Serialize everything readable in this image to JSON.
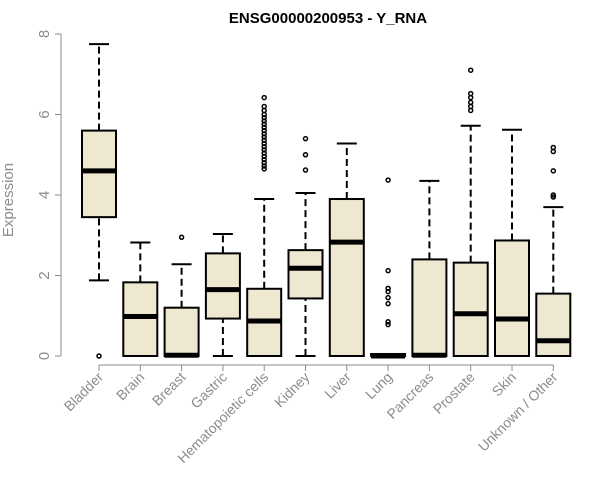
{
  "chart_data": {
    "type": "boxplot",
    "title": "ENSG00000200953 - Y_RNA",
    "xlabel": "",
    "ylabel": "Expression",
    "ylim": [
      0,
      8
    ],
    "yticks": [
      0,
      2,
      4,
      6,
      8
    ],
    "grid": false,
    "box_fill": "#efe8d0",
    "line_color": "#000000",
    "axis_color": "#8c8c8c",
    "categories": [
      "Bladder",
      "Brain",
      "Breast",
      "Gastric",
      "Hematopoietic cells",
      "Kidney",
      "Liver",
      "Lung",
      "Pancreas",
      "Prostate",
      "Skin",
      "Unknown / Other"
    ],
    "series": [
      {
        "name": "Bladder",
        "whisker_low": 1.88,
        "q1": 3.45,
        "median": 4.6,
        "q3": 5.6,
        "whisker_high": 7.75,
        "outliers": [
          0.0
        ]
      },
      {
        "name": "Brain",
        "whisker_low": 0.0,
        "q1": 0.0,
        "median": 0.98,
        "q3": 1.83,
        "whisker_high": 2.82,
        "outliers": []
      },
      {
        "name": "Breast",
        "whisker_low": 0.0,
        "q1": 0.0,
        "median": 0.02,
        "q3": 1.2,
        "whisker_high": 2.28,
        "outliers": [
          2.95
        ]
      },
      {
        "name": "Gastric",
        "whisker_low": 0.0,
        "q1": 0.93,
        "median": 1.65,
        "q3": 2.55,
        "whisker_high": 3.03,
        "outliers": []
      },
      {
        "name": "Hematopoietic cells",
        "whisker_low": 0.0,
        "q1": 0.0,
        "median": 0.87,
        "q3": 1.67,
        "whisker_high": 3.9,
        "outliers": [
          4.65,
          4.72,
          4.8,
          4.88,
          4.96,
          5.04,
          5.12,
          5.2,
          5.28,
          5.36,
          5.44,
          5.52,
          5.6,
          5.68,
          5.76,
          5.84,
          5.92,
          6.0,
          6.1,
          6.2,
          6.42
        ]
      },
      {
        "name": "Kidney",
        "whisker_low": 0.0,
        "q1": 1.43,
        "median": 2.18,
        "q3": 2.63,
        "whisker_high": 4.05,
        "outliers": [
          4.62,
          5.0,
          5.4
        ]
      },
      {
        "name": "Liver",
        "whisker_low": 0.0,
        "q1": 0.0,
        "median": 2.83,
        "q3": 3.9,
        "whisker_high": 5.28,
        "outliers": []
      },
      {
        "name": "Lung",
        "whisker_low": 0.0,
        "q1": 0.0,
        "median": 0.0,
        "q3": 0.05,
        "whisker_high": 0.05,
        "outliers": [
          0.78,
          0.85,
          1.3,
          1.45,
          1.6,
          1.68,
          2.12,
          4.37
        ]
      },
      {
        "name": "Pancreas",
        "whisker_low": 0.0,
        "q1": 0.0,
        "median": 0.02,
        "q3": 2.4,
        "whisker_high": 4.35,
        "outliers": []
      },
      {
        "name": "Prostate",
        "whisker_low": 0.0,
        "q1": 0.0,
        "median": 1.05,
        "q3": 2.32,
        "whisker_high": 5.72,
        "outliers": [
          6.1,
          6.2,
          6.3,
          6.42,
          6.52,
          7.1
        ]
      },
      {
        "name": "Skin",
        "whisker_low": 0.0,
        "q1": 0.0,
        "median": 0.92,
        "q3": 2.87,
        "whisker_high": 5.62,
        "outliers": []
      },
      {
        "name": "Unknown / Other",
        "whisker_low": 0.0,
        "q1": 0.0,
        "median": 0.38,
        "q3": 1.55,
        "whisker_high": 3.7,
        "outliers": [
          3.95,
          4.0,
          4.6,
          5.08,
          5.18
        ]
      }
    ]
  }
}
